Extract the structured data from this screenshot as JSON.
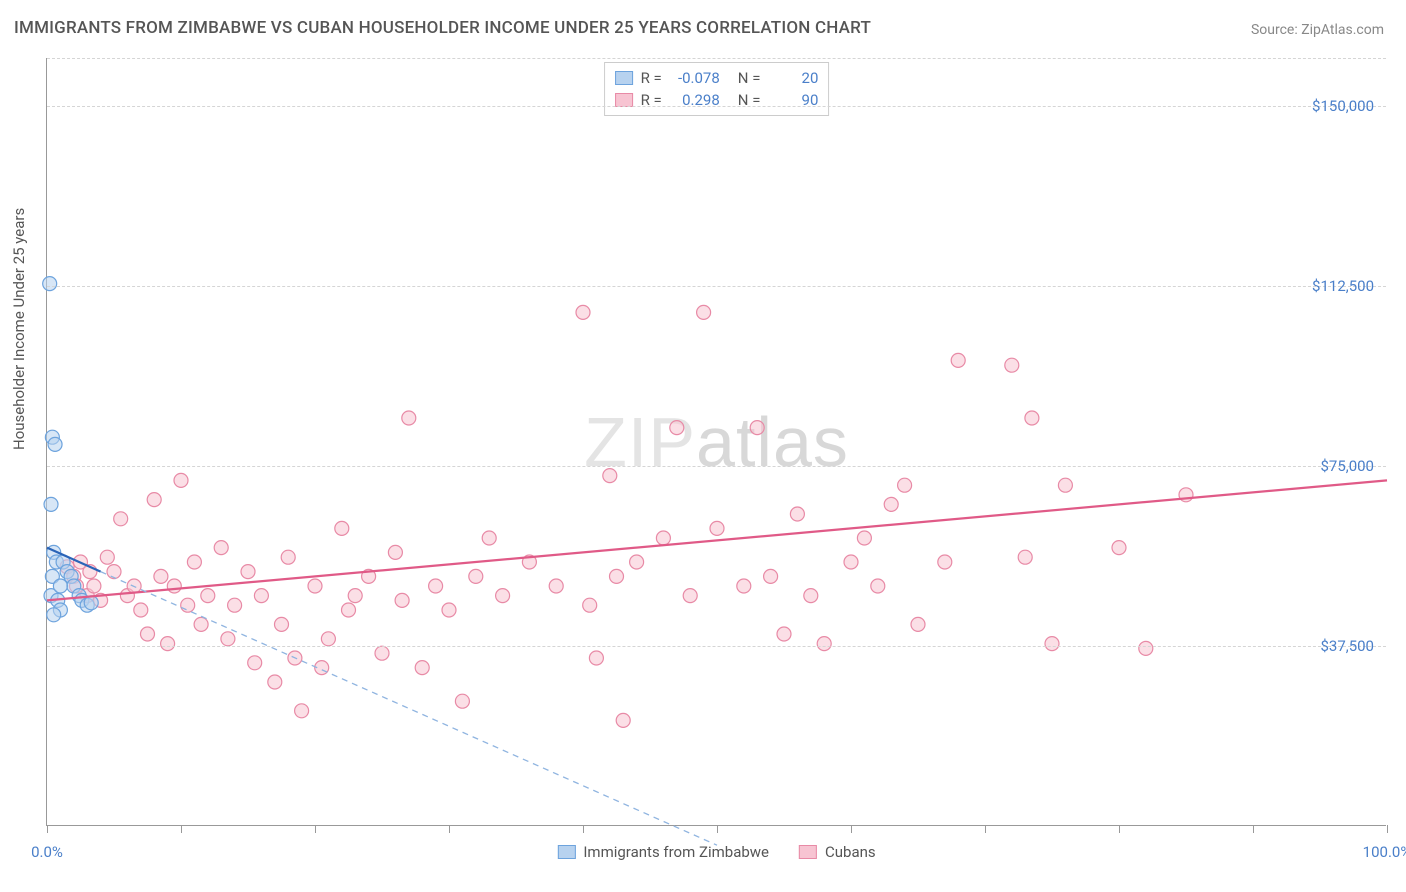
{
  "title": "IMMIGRANTS FROM ZIMBABWE VS CUBAN HOUSEHOLDER INCOME UNDER 25 YEARS CORRELATION CHART",
  "source": "Source: ZipAtlas.com",
  "ylabel": "Householder Income Under 25 years",
  "watermark": "ZIPatlas",
  "chart": {
    "type": "scatter",
    "xlim": [
      0,
      100
    ],
    "ylim": [
      0,
      160000
    ],
    "x_unit": "percent",
    "y_unit": "usd",
    "yticks": [
      37500,
      75000,
      112500,
      150000
    ],
    "ytick_labels": [
      "$37,500",
      "$75,000",
      "$112,500",
      "$150,000"
    ],
    "xtick_positions": [
      0,
      10,
      20,
      30,
      40,
      50,
      60,
      70,
      80,
      90,
      100
    ],
    "xtick_labels": {
      "0": "0.0%",
      "100": "100.0%"
    },
    "grid_color": "#d5d5d5",
    "axis_color": "#999999",
    "background_color": "#ffffff",
    "marker_radius": 7,
    "marker_stroke_width": 1.2,
    "trend_line_width": 2.2
  },
  "series": [
    {
      "id": "zimbabwe",
      "label": "Immigrants from Zimbabwe",
      "R": "-0.078",
      "N": "20",
      "fill": "#b7d2ef",
      "stroke": "#6da3dd",
      "fill_opacity": 0.55,
      "trend_color": "#2a64b8",
      "trend_dash_extension_color": "#8fb4e0",
      "trend": {
        "x1": 0,
        "y1": 58000,
        "x2": 4,
        "y2": 53000,
        "extend_x": 50,
        "extend_y": -4000
      },
      "points": [
        [
          0.2,
          113000
        ],
        [
          0.4,
          81000
        ],
        [
          0.6,
          79500
        ],
        [
          0.3,
          67000
        ],
        [
          0.5,
          57000
        ],
        [
          0.7,
          55000
        ],
        [
          0.4,
          52000
        ],
        [
          0.3,
          48000
        ],
        [
          0.8,
          47000
        ],
        [
          1.0,
          45000
        ],
        [
          0.5,
          44000
        ],
        [
          1.2,
          55000
        ],
        [
          1.5,
          53000
        ],
        [
          1.8,
          52000
        ],
        [
          2.0,
          50000
        ],
        [
          2.4,
          48000
        ],
        [
          2.6,
          47000
        ],
        [
          3.0,
          46000
        ],
        [
          3.3,
          46500
        ],
        [
          1.0,
          50000
        ]
      ]
    },
    {
      "id": "cubans",
      "label": "Cubans",
      "R": "0.298",
      "N": "90",
      "fill": "#f7c4d2",
      "stroke": "#e88aa6",
      "fill_opacity": 0.55,
      "trend_color": "#e05a87",
      "trend": {
        "x1": 0,
        "y1": 47000,
        "x2": 100,
        "y2": 72000
      },
      "points": [
        [
          1.5,
          54000
        ],
        [
          2.0,
          52000
        ],
        [
          2.2,
          50000
        ],
        [
          2.5,
          55000
        ],
        [
          3.0,
          48000
        ],
        [
          3.2,
          53000
        ],
        [
          3.5,
          50000
        ],
        [
          4.0,
          47000
        ],
        [
          4.5,
          56000
        ],
        [
          5.0,
          53000
        ],
        [
          5.5,
          64000
        ],
        [
          6.0,
          48000
        ],
        [
          6.5,
          50000
        ],
        [
          7.0,
          45000
        ],
        [
          7.5,
          40000
        ],
        [
          8.0,
          68000
        ],
        [
          8.5,
          52000
        ],
        [
          9.0,
          38000
        ],
        [
          9.5,
          50000
        ],
        [
          10.0,
          72000
        ],
        [
          10.5,
          46000
        ],
        [
          11.0,
          55000
        ],
        [
          11.5,
          42000
        ],
        [
          12.0,
          48000
        ],
        [
          13.0,
          58000
        ],
        [
          13.5,
          39000
        ],
        [
          14.0,
          46000
        ],
        [
          15.0,
          53000
        ],
        [
          15.5,
          34000
        ],
        [
          16.0,
          48000
        ],
        [
          17.0,
          30000
        ],
        [
          17.5,
          42000
        ],
        [
          18.0,
          56000
        ],
        [
          18.5,
          35000
        ],
        [
          19.0,
          24000
        ],
        [
          20.0,
          50000
        ],
        [
          20.5,
          33000
        ],
        [
          21.0,
          39000
        ],
        [
          22.0,
          62000
        ],
        [
          22.5,
          45000
        ],
        [
          23.0,
          48000
        ],
        [
          24.0,
          52000
        ],
        [
          25.0,
          36000
        ],
        [
          26.0,
          57000
        ],
        [
          26.5,
          47000
        ],
        [
          27.0,
          85000
        ],
        [
          28.0,
          33000
        ],
        [
          29.0,
          50000
        ],
        [
          30.0,
          45000
        ],
        [
          31.0,
          26000
        ],
        [
          32.0,
          52000
        ],
        [
          33.0,
          60000
        ],
        [
          34.0,
          48000
        ],
        [
          36.0,
          55000
        ],
        [
          38.0,
          50000
        ],
        [
          40.0,
          107000
        ],
        [
          40.5,
          46000
        ],
        [
          41.0,
          35000
        ],
        [
          42.0,
          73000
        ],
        [
          42.5,
          52000
        ],
        [
          43.0,
          22000
        ],
        [
          44.0,
          55000
        ],
        [
          46.0,
          60000
        ],
        [
          47.0,
          83000
        ],
        [
          48.0,
          48000
        ],
        [
          49.0,
          107000
        ],
        [
          50.0,
          62000
        ],
        [
          52.0,
          50000
        ],
        [
          53.0,
          83000
        ],
        [
          54.0,
          52000
        ],
        [
          55.0,
          40000
        ],
        [
          56.0,
          65000
        ],
        [
          57.0,
          48000
        ],
        [
          58.0,
          38000
        ],
        [
          60.0,
          55000
        ],
        [
          61.0,
          60000
        ],
        [
          62.0,
          50000
        ],
        [
          63.0,
          67000
        ],
        [
          64.0,
          71000
        ],
        [
          65.0,
          42000
        ],
        [
          67.0,
          55000
        ],
        [
          68.0,
          97000
        ],
        [
          72.0,
          96000
        ],
        [
          73.0,
          56000
        ],
        [
          73.5,
          85000
        ],
        [
          75.0,
          38000
        ],
        [
          76.0,
          71000
        ],
        [
          80.0,
          58000
        ],
        [
          82.0,
          37000
        ],
        [
          85.0,
          69000
        ]
      ]
    }
  ]
}
